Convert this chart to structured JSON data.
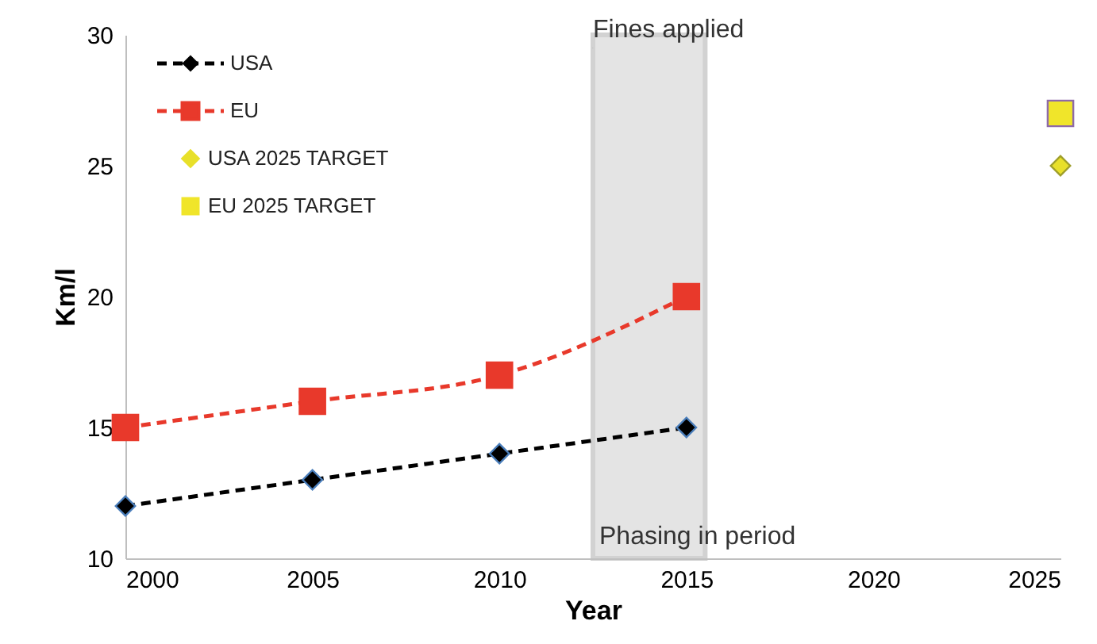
{
  "chart_data": {
    "type": "line",
    "xlabel": "Year",
    "ylabel": "Km/l",
    "x": [
      2000,
      2005,
      2010,
      2015
    ],
    "series": [
      {
        "name": "USA",
        "color": "#000000",
        "values": [
          12,
          13,
          14,
          15
        ],
        "marker": "diamond",
        "line_style": "dashed"
      },
      {
        "name": "EU",
        "color": "#e8392b",
        "values": [
          15,
          16,
          17,
          20
        ],
        "marker": "square",
        "line_style": "dashed"
      },
      {
        "name": "USA 2025 TARGET",
        "type": "scatter",
        "color": "#e8e02a",
        "x": [
          2025
        ],
        "values": [
          25
        ],
        "marker": "diamond"
      },
      {
        "name": "EU 2025 TARGET",
        "type": "scatter",
        "color": "#f0e52a",
        "x": [
          2025
        ],
        "values": [
          27
        ],
        "marker": "square"
      }
    ],
    "xlim": [
      2000,
      2025
    ],
    "xticks": [
      2000,
      2005,
      2010,
      2015,
      2020,
      2025
    ],
    "ylim": [
      10,
      30
    ],
    "yticks": [
      10,
      15,
      20,
      25,
      30
    ],
    "grid": false,
    "legend": "top left",
    "bands": [
      {
        "axis": "x",
        "from": 2012.5,
        "to": 2015.5,
        "label": "Phasing in period",
        "color": "#d9d9d9"
      }
    ],
    "annotations": [
      {
        "text": "Fines applied",
        "x": 2012.5,
        "y": 29.5
      }
    ]
  }
}
